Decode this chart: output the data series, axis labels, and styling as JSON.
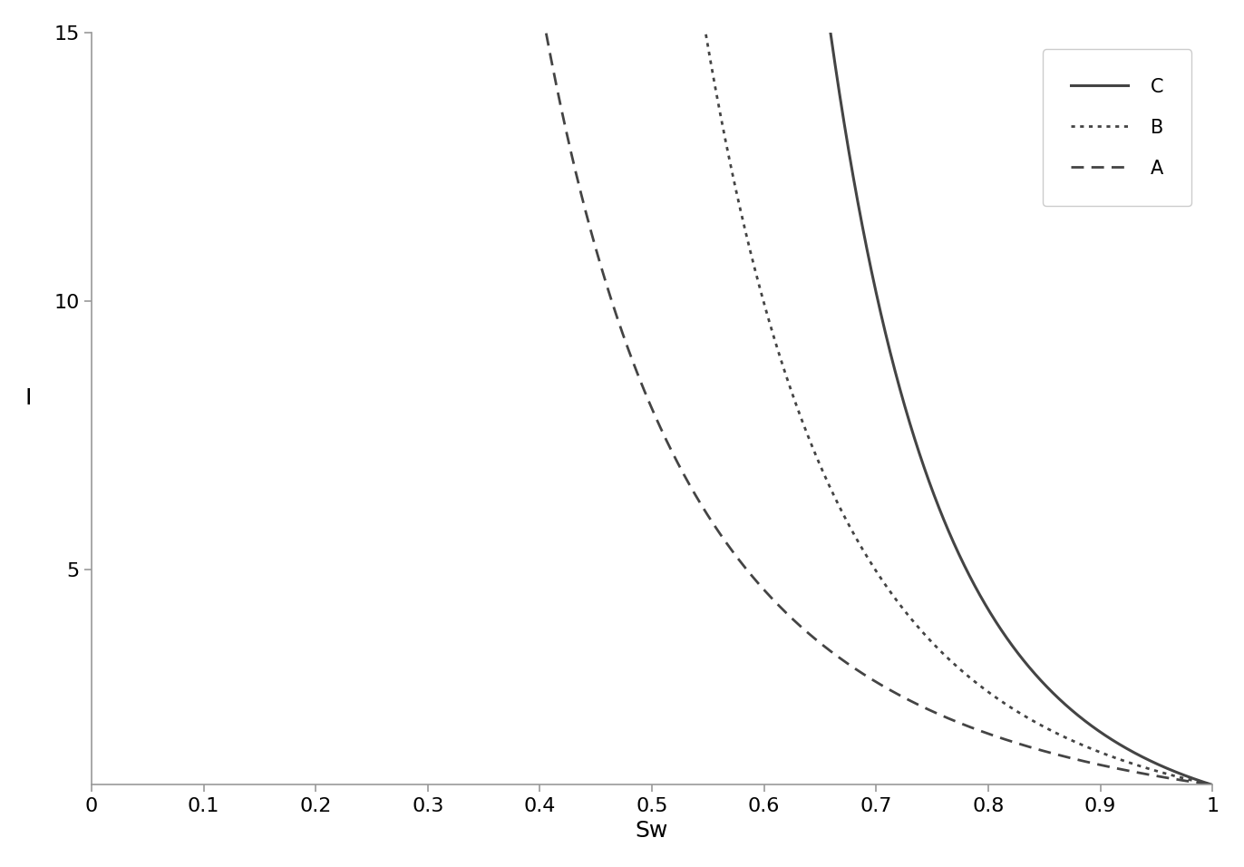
{
  "title": "",
  "xlabel": "Sw",
  "ylabel": "I",
  "xlim": [
    0,
    1
  ],
  "ylim": [
    1,
    15
  ],
  "yticks": [
    5,
    10,
    15
  ],
  "xticks": [
    0,
    0.1,
    0.2,
    0.3,
    0.4,
    0.5,
    0.6,
    0.7,
    0.8,
    0.9,
    1
  ],
  "curves": [
    {
      "label": "C",
      "linestyle": "solid",
      "color": "#444444",
      "linewidth": 2.2,
      "sw_min": 0.42,
      "n": 6.5
    },
    {
      "label": "B",
      "linestyle": "dotted",
      "color": "#444444",
      "linewidth": 2.0,
      "sw_min": 0.265,
      "n": 4.5
    },
    {
      "label": "A",
      "linestyle": "dashed",
      "color": "#444444",
      "linewidth": 2.0,
      "sw_min": 0.195,
      "n": 3.0
    }
  ],
  "background_color": "#ffffff",
  "legend_fontsize": 15,
  "axis_fontsize": 18,
  "tick_fontsize": 16,
  "spine_color": "#999999",
  "tick_color": "#999999"
}
